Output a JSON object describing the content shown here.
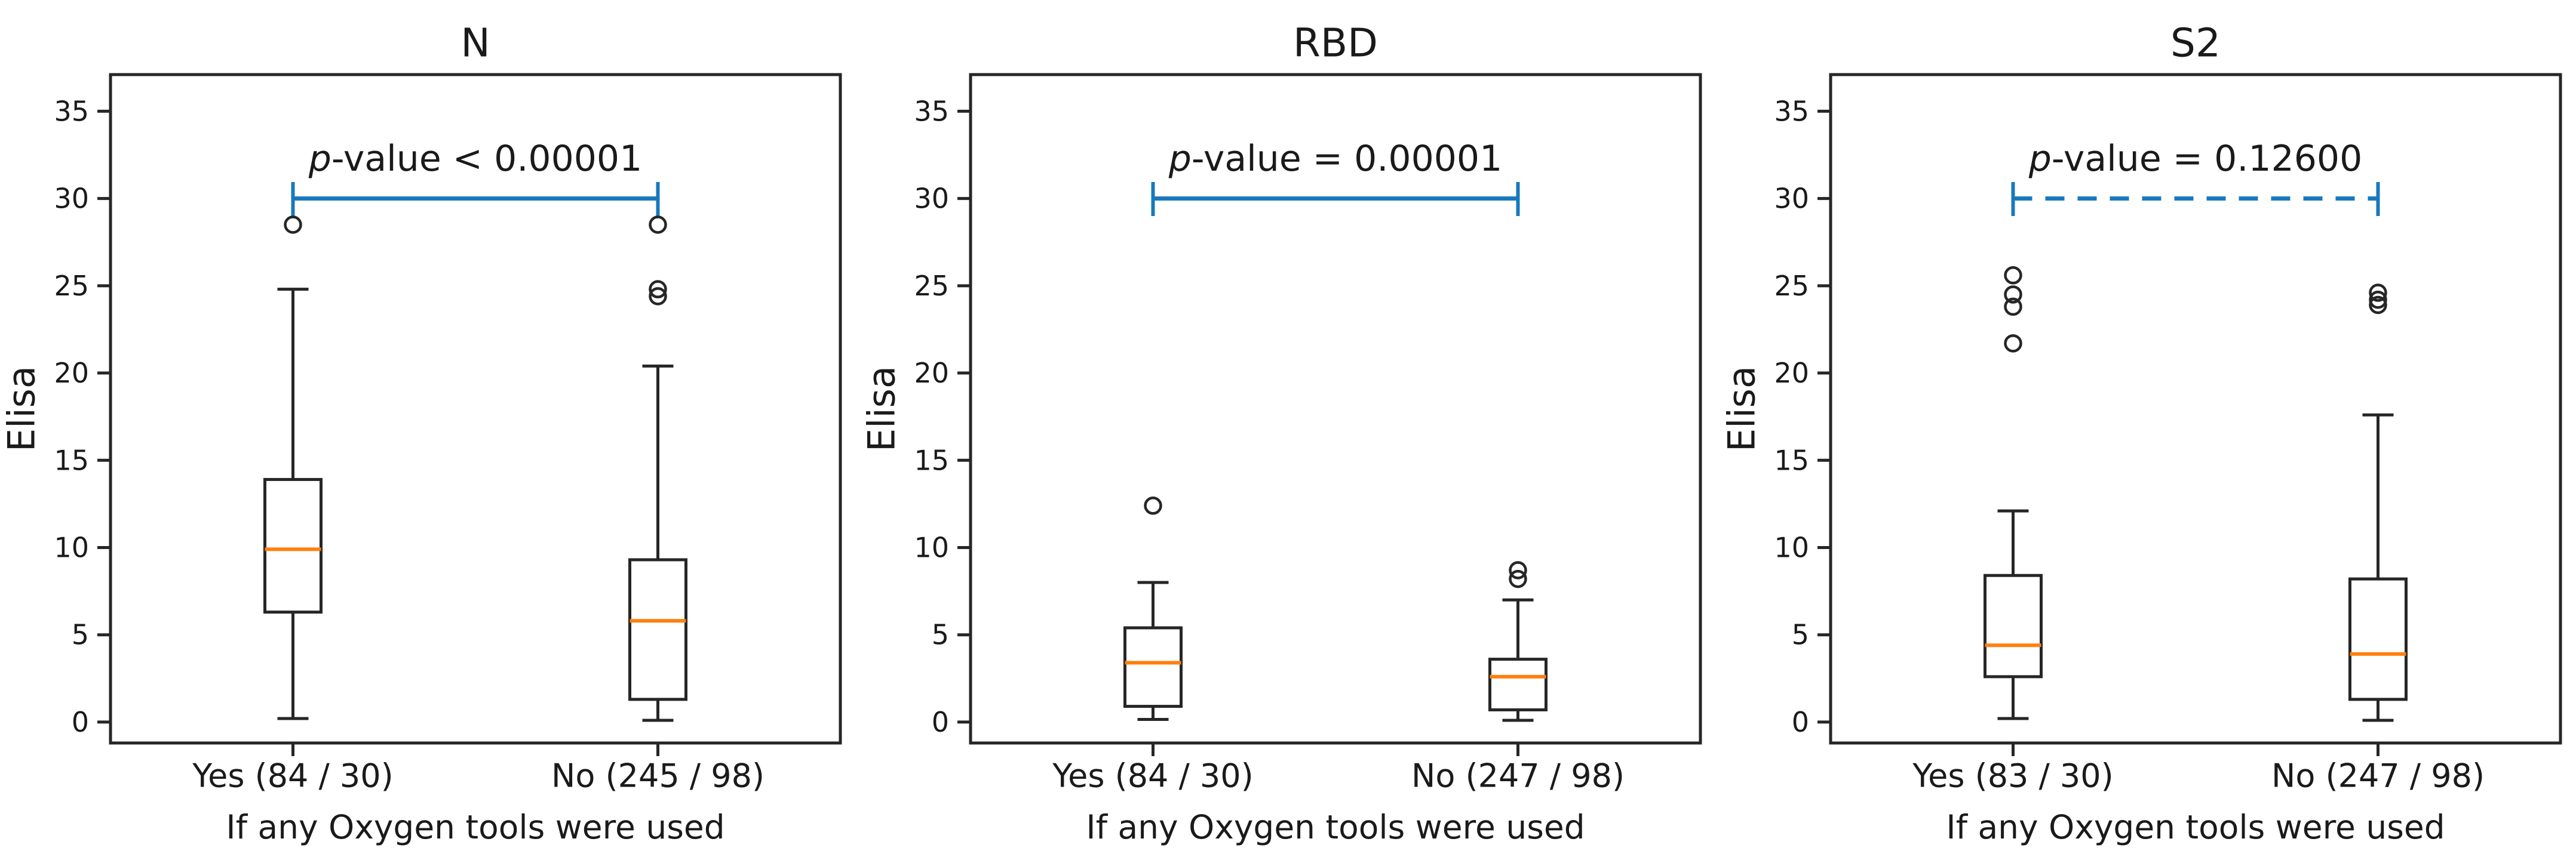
{
  "figure": {
    "background": "#ffffff",
    "line_color": "#262626",
    "median_color": "#ff7f0e",
    "bracket_color": "#1778be"
  },
  "chart_data": [
    {
      "type": "boxplot",
      "title": "N",
      "ylabel": "Elisa",
      "xlabel": "If any Oxygen tools were used",
      "ylim": [
        -1.2,
        37.1
      ],
      "yticks": [
        0,
        5,
        10,
        15,
        20,
        25,
        30,
        35
      ],
      "categories": [
        "Yes (84 / 30)",
        "No (245 / 98)"
      ],
      "significance": {
        "p_italic": "p",
        "text": "-value < 0.00001",
        "label": "p-value < 0.00001",
        "bracket_y": 30,
        "style": "solid"
      },
      "boxes": [
        {
          "whisker_low": 0.2,
          "q1": 6.3,
          "median": 9.9,
          "q3": 13.9,
          "whisker_high": 24.8,
          "outliers": [
            28.5
          ]
        },
        {
          "whisker_low": 0.1,
          "q1": 1.3,
          "median": 5.8,
          "q3": 9.3,
          "whisker_high": 20.4,
          "outliers": [
            24.4,
            24.8,
            28.5
          ]
        }
      ]
    },
    {
      "type": "boxplot",
      "title": "RBD",
      "ylabel": "Elisa",
      "xlabel": "If any Oxygen tools were used",
      "ylim": [
        -1.2,
        37.1
      ],
      "yticks": [
        0,
        5,
        10,
        15,
        20,
        25,
        30,
        35
      ],
      "categories": [
        "Yes (84 / 30)",
        "No (247 / 98)"
      ],
      "significance": {
        "p_italic": "p",
        "text": "-value = 0.00001",
        "label": "p-value = 0.00001",
        "bracket_y": 30,
        "style": "solid"
      },
      "boxes": [
        {
          "whisker_low": 0.15,
          "q1": 0.9,
          "median": 3.4,
          "q3": 5.4,
          "whisker_high": 8.0,
          "outliers": [
            12.4
          ]
        },
        {
          "whisker_low": 0.1,
          "q1": 0.7,
          "median": 2.6,
          "q3": 3.6,
          "whisker_high": 7.0,
          "outliers": [
            8.2,
            8.7
          ]
        }
      ]
    },
    {
      "type": "boxplot",
      "title": "S2",
      "ylabel": "Elisa",
      "xlabel": "If any Oxygen tools were used",
      "ylim": [
        -1.2,
        37.1
      ],
      "yticks": [
        0,
        5,
        10,
        15,
        20,
        25,
        30,
        35
      ],
      "categories": [
        "Yes (83 / 30)",
        "No (247 / 98)"
      ],
      "significance": {
        "p_italic": "p",
        "text": "-value = 0.12600",
        "label": "p-value = 0.12600",
        "bracket_y": 30,
        "style": "dashed"
      },
      "boxes": [
        {
          "whisker_low": 0.2,
          "q1": 2.6,
          "median": 4.4,
          "q3": 8.4,
          "whisker_high": 12.1,
          "outliers": [
            21.7,
            23.8,
            24.5,
            25.6
          ]
        },
        {
          "whisker_low": 0.1,
          "q1": 1.3,
          "median": 3.9,
          "q3": 8.2,
          "whisker_high": 17.6,
          "outliers": [
            23.9,
            24.2,
            24.6
          ]
        }
      ]
    }
  ]
}
